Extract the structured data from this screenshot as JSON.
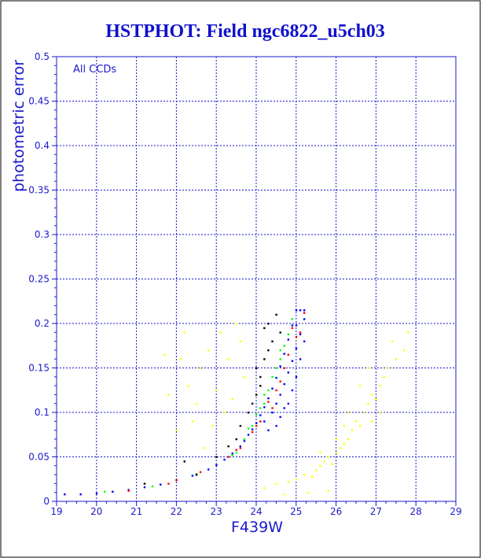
{
  "chart_data": {
    "type": "scatter",
    "title": "HSTPHOT: Field ngc6822_u5ch03",
    "xlabel": "F439W",
    "ylabel": "photometric error",
    "annotation": "All CCDs",
    "xlim": [
      19,
      29
    ],
    "ylim": [
      0,
      0.5
    ],
    "x_ticks": [
      "19",
      "20",
      "21",
      "22",
      "23",
      "24",
      "25",
      "26",
      "27",
      "28",
      "29"
    ],
    "y_ticks": [
      "0",
      "0.05",
      "0.1",
      "0.15",
      "0.2",
      "0.25",
      "0.3",
      "0.35",
      "0.4",
      "0.45",
      "0.5"
    ],
    "grid": true,
    "legend": "none",
    "colors": {
      "axis": "#1a1acc",
      "grid": "#1a1acc",
      "title": "#1010cc",
      "frame": "#000000"
    },
    "series": [
      {
        "color": "#0000ff",
        "points": [
          [
            19.2,
            0.008
          ],
          [
            19.6,
            0.008
          ],
          [
            20.0,
            0.009
          ],
          [
            20.4,
            0.011
          ],
          [
            20.8,
            0.013
          ],
          [
            21.2,
            0.016
          ],
          [
            21.6,
            0.019
          ],
          [
            22.0,
            0.024
          ],
          [
            22.4,
            0.029
          ],
          [
            22.8,
            0.036
          ],
          [
            23.0,
            0.041
          ],
          [
            23.2,
            0.047
          ],
          [
            23.4,
            0.054
          ],
          [
            23.6,
            0.062
          ],
          [
            23.7,
            0.068
          ],
          [
            23.8,
            0.075
          ],
          [
            23.9,
            0.081
          ],
          [
            24.0,
            0.088
          ],
          [
            24.1,
            0.097
          ],
          [
            24.2,
            0.106
          ],
          [
            24.3,
            0.116
          ],
          [
            24.4,
            0.127
          ],
          [
            24.5,
            0.139
          ],
          [
            24.6,
            0.152
          ],
          [
            24.7,
            0.166
          ],
          [
            24.8,
            0.182
          ],
          [
            24.9,
            0.198
          ],
          [
            25.0,
            0.215
          ],
          [
            25.1,
            0.215
          ],
          [
            25.2,
            0.215
          ],
          [
            24.4,
            0.1
          ],
          [
            24.5,
            0.11
          ],
          [
            24.6,
            0.12
          ],
          [
            24.7,
            0.132
          ],
          [
            24.8,
            0.145
          ],
          [
            24.9,
            0.158
          ],
          [
            25.0,
            0.172
          ],
          [
            25.1,
            0.188
          ],
          [
            25.2,
            0.205
          ],
          [
            24.2,
            0.09
          ],
          [
            24.6,
            0.095
          ],
          [
            24.8,
            0.11
          ],
          [
            25.0,
            0.14
          ],
          [
            25.1,
            0.16
          ],
          [
            25.2,
            0.18
          ],
          [
            24.9,
            0.125
          ],
          [
            24.7,
            0.105
          ],
          [
            24.3,
            0.08
          ],
          [
            24.5,
            0.085
          ],
          [
            25.0,
            0.198
          ]
        ]
      },
      {
        "color": "#ff0000",
        "points": [
          [
            20.8,
            0.012
          ],
          [
            21.8,
            0.02
          ],
          [
            22.6,
            0.033
          ],
          [
            23.3,
            0.05
          ],
          [
            23.9,
            0.078
          ],
          [
            24.3,
            0.112
          ],
          [
            24.7,
            0.15
          ],
          [
            25.0,
            0.185
          ],
          [
            25.2,
            0.212
          ],
          [
            24.9,
            0.195
          ],
          [
            24.5,
            0.125
          ],
          [
            24.1,
            0.09
          ],
          [
            23.6,
            0.06
          ],
          [
            24.8,
            0.165
          ],
          [
            25.1,
            0.19
          ],
          [
            24.6,
            0.135
          ],
          [
            24.0,
            0.085
          ],
          [
            23.5,
            0.058
          ],
          [
            22.0,
            0.024
          ],
          [
            24.4,
            0.105
          ]
        ]
      },
      {
        "color": "#00ff00",
        "points": [
          [
            20.2,
            0.011
          ],
          [
            21.4,
            0.017
          ],
          [
            22.5,
            0.031
          ],
          [
            23.5,
            0.055
          ],
          [
            23.9,
            0.085
          ],
          [
            24.2,
            0.11
          ],
          [
            24.4,
            0.14
          ],
          [
            24.6,
            0.16
          ],
          [
            24.8,
            0.188
          ],
          [
            24.3,
            0.125
          ],
          [
            24.0,
            0.098
          ],
          [
            23.8,
            0.082
          ],
          [
            24.5,
            0.15
          ],
          [
            24.7,
            0.175
          ],
          [
            24.1,
            0.105
          ],
          [
            23.7,
            0.07
          ],
          [
            24.9,
            0.205
          ],
          [
            24.6,
            0.17
          ],
          [
            24.2,
            0.12
          ],
          [
            23.4,
            0.052
          ]
        ]
      },
      {
        "color": "#000000",
        "points": [
          [
            21.2,
            0.02
          ],
          [
            22.2,
            0.045
          ],
          [
            22.5,
            0.03
          ],
          [
            23.0,
            0.05
          ],
          [
            23.5,
            0.07
          ],
          [
            23.8,
            0.1
          ],
          [
            24.0,
            0.12
          ],
          [
            24.1,
            0.14
          ],
          [
            24.2,
            0.16
          ],
          [
            24.4,
            0.18
          ],
          [
            24.3,
            0.2
          ],
          [
            24.5,
            0.21
          ],
          [
            24.6,
            0.19
          ],
          [
            23.9,
            0.11
          ],
          [
            23.6,
            0.085
          ],
          [
            24.0,
            0.15
          ],
          [
            24.3,
            0.17
          ],
          [
            23.3,
            0.062
          ],
          [
            24.2,
            0.195
          ],
          [
            24.1,
            0.13
          ]
        ]
      },
      {
        "color": "#ffff00",
        "points": [
          [
            21.7,
            0.165
          ],
          [
            21.8,
            0.12
          ],
          [
            22.0,
            0.08
          ],
          [
            22.2,
            0.19
          ],
          [
            22.3,
            0.13
          ],
          [
            22.5,
            0.11
          ],
          [
            22.6,
            0.15
          ],
          [
            22.8,
            0.17
          ],
          [
            23.0,
            0.125
          ],
          [
            23.2,
            0.1
          ],
          [
            23.3,
            0.16
          ],
          [
            23.5,
            0.2
          ],
          [
            23.7,
            0.14
          ],
          [
            22.4,
            0.09
          ],
          [
            23.1,
            0.19
          ],
          [
            22.9,
            0.085
          ],
          [
            23.4,
            0.115
          ],
          [
            22.7,
            0.06
          ],
          [
            22.1,
            0.16
          ],
          [
            23.6,
            0.18
          ],
          [
            24.2,
            0.015
          ],
          [
            24.5,
            0.02
          ],
          [
            24.8,
            0.022
          ],
          [
            25.0,
            0.025
          ],
          [
            25.2,
            0.03
          ],
          [
            25.4,
            0.028
          ],
          [
            25.5,
            0.035
          ],
          [
            25.6,
            0.04
          ],
          [
            25.7,
            0.045
          ],
          [
            25.8,
            0.05
          ],
          [
            25.9,
            0.042
          ],
          [
            26.0,
            0.055
          ],
          [
            26.1,
            0.06
          ],
          [
            26.2,
            0.065
          ],
          [
            26.3,
            0.07
          ],
          [
            26.4,
            0.08
          ],
          [
            26.5,
            0.09
          ],
          [
            26.6,
            0.085
          ],
          [
            26.7,
            0.1
          ],
          [
            26.8,
            0.11
          ],
          [
            26.9,
            0.12
          ],
          [
            27.0,
            0.115
          ],
          [
            27.1,
            0.13
          ],
          [
            27.2,
            0.14
          ],
          [
            27.3,
            0.15
          ],
          [
            27.5,
            0.16
          ],
          [
            27.7,
            0.17
          ],
          [
            25.3,
            0.01
          ],
          [
            24.7,
            0.008
          ],
          [
            25.8,
            0.012
          ],
          [
            26.0,
            0.07
          ],
          [
            26.3,
            0.1
          ],
          [
            26.6,
            0.13
          ],
          [
            26.9,
            0.09
          ],
          [
            27.4,
            0.18
          ],
          [
            27.8,
            0.19
          ],
          [
            25.6,
            0.055
          ],
          [
            26.2,
            0.085
          ],
          [
            26.8,
            0.15
          ],
          [
            27.1,
            0.1
          ]
        ]
      }
    ]
  }
}
